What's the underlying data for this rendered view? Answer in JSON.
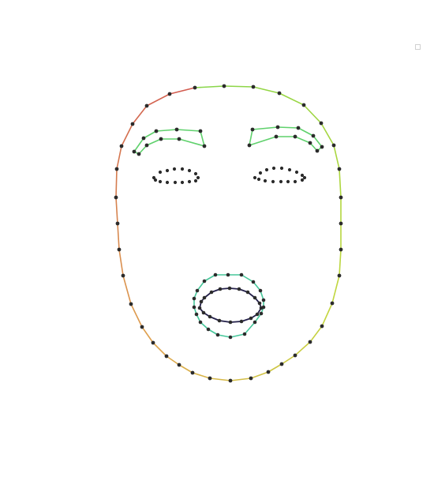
{
  "diagram": {
    "kind": "face-landmarks",
    "colors": {
      "background": "#ffffff",
      "landmark_dot": "#2b2b2b",
      "eyebrows": "#5fd16c",
      "outer_lips": "#46c79a",
      "inner_lips": "#24204a",
      "jaw_gradient": [
        "#d25b4f",
        "#d6824f",
        "#e0a44e",
        "#d2c046",
        "#c3d63f",
        "#a8d63e",
        "#89d64a"
      ]
    },
    "parts": [
      "jaw-outline",
      "left-eyebrow",
      "right-eyebrow",
      "left-eye",
      "right-eye",
      "outer-lips",
      "inner-lips"
    ],
    "icons": [
      "corner-square-icon"
    ]
  }
}
